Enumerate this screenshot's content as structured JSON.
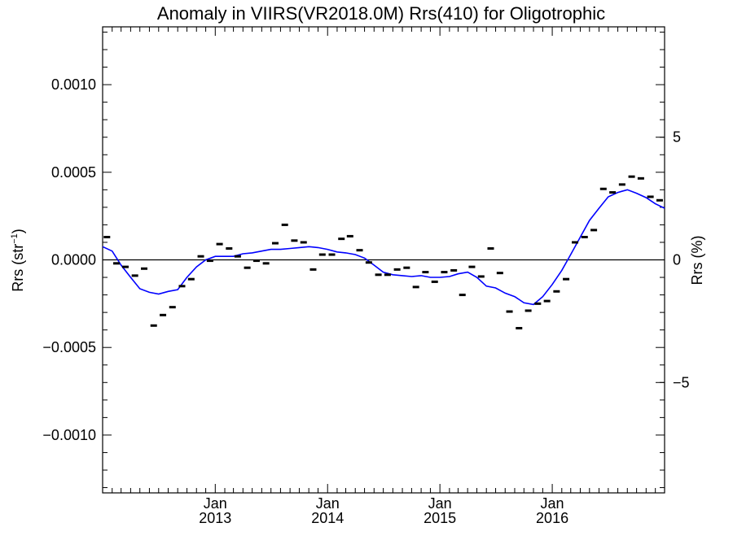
{
  "chart_data": {
    "type": "scatter",
    "title": "Anomaly in VIIRS(VR2018.0M) Rrs(410) for Oligotrophic",
    "ylabel_left": {
      "main": "Rrs (str",
      "sup": "−1",
      "close": ")"
    },
    "ylabel_right": "Rrs (%)",
    "xlim": [
      "2012-01-01",
      "2016-12-31"
    ],
    "ylim": [
      -0.00133,
      0.00133
    ],
    "y2lim": [
      -9.5,
      9.5
    ],
    "x_ticks": [
      {
        "date": "2013-01-01",
        "top": "Jan",
        "bottom": "2013"
      },
      {
        "date": "2014-01-01",
        "top": "Jan",
        "bottom": "2014"
      },
      {
        "date": "2015-01-01",
        "top": "Jan",
        "bottom": "2015"
      },
      {
        "date": "2016-01-01",
        "top": "Jan",
        "bottom": "2016"
      }
    ],
    "y_ticks": [
      {
        "value": 0.001,
        "label": "0.0010"
      },
      {
        "value": 0.0005,
        "label": "0.0005"
      },
      {
        "value": 0.0,
        "label": "0.0000"
      },
      {
        "value": -0.0005,
        "label": "−0.0005"
      },
      {
        "value": -0.001,
        "label": "−0.0010"
      }
    ],
    "y2_ticks": [
      {
        "value": 5,
        "label": "5"
      },
      {
        "value": 0,
        "label": "0"
      },
      {
        "value": -5,
        "label": "−5"
      }
    ],
    "zero_line": true,
    "grid": false,
    "colors": {
      "marker": "#000000",
      "smooth": "#0000ff",
      "axes": "#000000"
    },
    "series": [
      {
        "marker": "dash",
        "points": [
          {
            "x": "2012-01-15",
            "y": 0.00013
          },
          {
            "x": "2012-02-15",
            "y": -2e-05
          },
          {
            "x": "2012-03-15",
            "y": -4e-05
          },
          {
            "x": "2012-04-15",
            "y": -9e-05
          },
          {
            "x": "2012-05-15",
            "y": -5e-05
          },
          {
            "x": "2012-06-15",
            "y": -0.000375
          },
          {
            "x": "2012-07-15",
            "y": -0.000315
          },
          {
            "x": "2012-08-15",
            "y": -0.00027
          },
          {
            "x": "2012-09-15",
            "y": -0.00015
          },
          {
            "x": "2012-10-15",
            "y": -0.00011
          },
          {
            "x": "2012-11-15",
            "y": 2e-05
          },
          {
            "x": "2012-12-15",
            "y": -5e-06
          },
          {
            "x": "2013-01-15",
            "y": 9e-05
          },
          {
            "x": "2013-02-15",
            "y": 6.5e-05
          },
          {
            "x": "2013-03-15",
            "y": 2e-05
          },
          {
            "x": "2013-04-15",
            "y": -4.5e-05
          },
          {
            "x": "2013-05-15",
            "y": -5e-06
          },
          {
            "x": "2013-06-15",
            "y": -2e-05
          },
          {
            "x": "2013-07-15",
            "y": 9.5e-05
          },
          {
            "x": "2013-08-15",
            "y": 0.0002
          },
          {
            "x": "2013-09-15",
            "y": 0.00011
          },
          {
            "x": "2013-10-15",
            "y": 0.0001
          },
          {
            "x": "2013-11-15",
            "y": -5.5e-05
          },
          {
            "x": "2013-12-15",
            "y": 3e-05
          },
          {
            "x": "2014-01-15",
            "y": 3e-05
          },
          {
            "x": "2014-02-15",
            "y": 0.00012
          },
          {
            "x": "2014-03-15",
            "y": 0.000135
          },
          {
            "x": "2014-04-15",
            "y": 5.5e-05
          },
          {
            "x": "2014-05-15",
            "y": -1.5e-05
          },
          {
            "x": "2014-06-15",
            "y": -8.5e-05
          },
          {
            "x": "2014-07-15",
            "y": -8.5e-05
          },
          {
            "x": "2014-08-15",
            "y": -5.5e-05
          },
          {
            "x": "2014-09-15",
            "y": -4.5e-05
          },
          {
            "x": "2014-10-15",
            "y": -0.000155
          },
          {
            "x": "2014-11-15",
            "y": -7e-05
          },
          {
            "x": "2014-12-15",
            "y": -0.000125
          },
          {
            "x": "2015-01-15",
            "y": -7e-05
          },
          {
            "x": "2015-02-15",
            "y": -6e-05
          },
          {
            "x": "2015-03-15",
            "y": -0.0002
          },
          {
            "x": "2015-04-15",
            "y": -4e-05
          },
          {
            "x": "2015-05-15",
            "y": -9.5e-05
          },
          {
            "x": "2015-06-15",
            "y": 6.5e-05
          },
          {
            "x": "2015-07-15",
            "y": -7.5e-05
          },
          {
            "x": "2015-08-15",
            "y": -0.000295
          },
          {
            "x": "2015-09-15",
            "y": -0.00039
          },
          {
            "x": "2015-10-15",
            "y": -0.00029
          },
          {
            "x": "2015-11-15",
            "y": -0.00025
          },
          {
            "x": "2015-12-15",
            "y": -0.000235
          },
          {
            "x": "2016-01-15",
            "y": -0.00018
          },
          {
            "x": "2016-02-15",
            "y": -0.00011
          },
          {
            "x": "2016-03-15",
            "y": 0.0001
          },
          {
            "x": "2016-04-15",
            "y": 0.00013
          },
          {
            "x": "2016-05-15",
            "y": 0.00017
          },
          {
            "x": "2016-06-15",
            "y": 0.000405
          },
          {
            "x": "2016-07-15",
            "y": 0.000385
          },
          {
            "x": "2016-08-15",
            "y": 0.00043
          },
          {
            "x": "2016-09-15",
            "y": 0.000475
          },
          {
            "x": "2016-10-15",
            "y": 0.000465
          },
          {
            "x": "2016-11-15",
            "y": 0.00036
          },
          {
            "x": "2016-12-15",
            "y": 0.00034
          }
        ]
      },
      {
        "marker": "line",
        "points": [
          {
            "x": "2012-01-01",
            "y": 7.5e-05
          },
          {
            "x": "2012-02-01",
            "y": 5e-05
          },
          {
            "x": "2012-03-01",
            "y": -3e-05
          },
          {
            "x": "2012-04-01",
            "y": -0.0001
          },
          {
            "x": "2012-05-01",
            "y": -0.000165
          },
          {
            "x": "2012-06-01",
            "y": -0.000185
          },
          {
            "x": "2012-07-01",
            "y": -0.000195
          },
          {
            "x": "2012-08-01",
            "y": -0.00018
          },
          {
            "x": "2012-09-01",
            "y": -0.00017
          },
          {
            "x": "2012-10-01",
            "y": -0.0001
          },
          {
            "x": "2012-11-01",
            "y": -4e-05
          },
          {
            "x": "2012-12-01",
            "y": 0.0
          },
          {
            "x": "2013-01-01",
            "y": 2e-05
          },
          {
            "x": "2013-02-01",
            "y": 2e-05
          },
          {
            "x": "2013-03-01",
            "y": 2e-05
          },
          {
            "x": "2013-04-01",
            "y": 3.5e-05
          },
          {
            "x": "2013-05-01",
            "y": 4e-05
          },
          {
            "x": "2013-06-01",
            "y": 5e-05
          },
          {
            "x": "2013-07-01",
            "y": 6e-05
          },
          {
            "x": "2013-08-01",
            "y": 6e-05
          },
          {
            "x": "2013-09-01",
            "y": 6.5e-05
          },
          {
            "x": "2013-10-01",
            "y": 7e-05
          },
          {
            "x": "2013-11-01",
            "y": 7.5e-05
          },
          {
            "x": "2013-12-01",
            "y": 7e-05
          },
          {
            "x": "2014-01-01",
            "y": 6e-05
          },
          {
            "x": "2014-02-01",
            "y": 4.5e-05
          },
          {
            "x": "2014-03-01",
            "y": 4e-05
          },
          {
            "x": "2014-04-01",
            "y": 3e-05
          },
          {
            "x": "2014-05-01",
            "y": 1e-05
          },
          {
            "x": "2014-06-01",
            "y": -3e-05
          },
          {
            "x": "2014-07-01",
            "y": -7e-05
          },
          {
            "x": "2014-08-01",
            "y": -8.5e-05
          },
          {
            "x": "2014-09-01",
            "y": -9e-05
          },
          {
            "x": "2014-10-01",
            "y": -9.5e-05
          },
          {
            "x": "2014-11-01",
            "y": -9e-05
          },
          {
            "x": "2014-12-01",
            "y": -0.0001
          },
          {
            "x": "2015-01-01",
            "y": -0.0001
          },
          {
            "x": "2015-02-01",
            "y": -9.5e-05
          },
          {
            "x": "2015-03-01",
            "y": -8e-05
          },
          {
            "x": "2015-04-01",
            "y": -7e-05
          },
          {
            "x": "2015-05-01",
            "y": -0.0001
          },
          {
            "x": "2015-06-01",
            "y": -0.00015
          },
          {
            "x": "2015-07-01",
            "y": -0.00016
          },
          {
            "x": "2015-08-01",
            "y": -0.00019
          },
          {
            "x": "2015-09-01",
            "y": -0.00021
          },
          {
            "x": "2015-10-01",
            "y": -0.000245
          },
          {
            "x": "2015-11-01",
            "y": -0.000255
          },
          {
            "x": "2015-12-01",
            "y": -0.00021
          },
          {
            "x": "2016-01-01",
            "y": -0.00014
          },
          {
            "x": "2016-02-01",
            "y": -6e-05
          },
          {
            "x": "2016-03-01",
            "y": 3e-05
          },
          {
            "x": "2016-04-01",
            "y": 0.00013
          },
          {
            "x": "2016-05-01",
            "y": 0.000225
          },
          {
            "x": "2016-06-01",
            "y": 0.000295
          },
          {
            "x": "2016-07-01",
            "y": 0.00036
          },
          {
            "x": "2016-08-01",
            "y": 0.000385
          },
          {
            "x": "2016-09-01",
            "y": 0.0004
          },
          {
            "x": "2016-10-01",
            "y": 0.00038
          },
          {
            "x": "2016-11-01",
            "y": 0.000355
          },
          {
            "x": "2016-12-01",
            "y": 0.00032
          },
          {
            "x": "2016-12-31",
            "y": 0.000295
          }
        ]
      }
    ]
  }
}
